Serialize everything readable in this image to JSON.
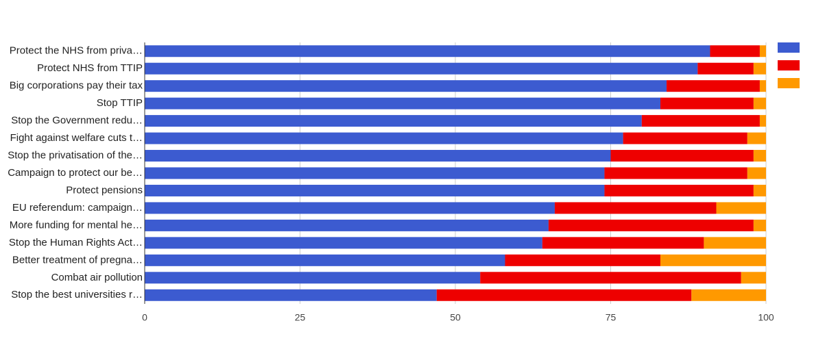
{
  "chart_data": {
    "type": "stacked-bar-horizontal",
    "categories": [
      "Protect the NHS from priva…",
      "Protect NHS from TTIP",
      "Big corporations pay their tax",
      "Stop TTIP",
      "Stop the Government redu…",
      "Fight against welfare cuts t…",
      "Stop the privatisation of the…",
      "Campaign to protect our be…",
      "Protect pensions",
      "EU referendum: campaign…",
      "More funding for mental he…",
      "Stop the Human Rights Act…",
      "Better treatment of pregna…",
      "Combat air pollution",
      "Stop the best universities r…"
    ],
    "series": [
      {
        "color": "#3c5bd0",
        "values": [
          91,
          89,
          84,
          83,
          80,
          77,
          75,
          74,
          74,
          66,
          65,
          64,
          58,
          54,
          47
        ]
      },
      {
        "color": "#ee0000",
        "values": [
          8,
          9,
          15,
          15,
          19,
          20,
          23,
          23,
          24,
          26,
          33,
          26,
          25,
          42,
          41
        ]
      },
      {
        "color": "#ff9900",
        "values": [
          1,
          2,
          1,
          2,
          1,
          3,
          2,
          3,
          2,
          8,
          2,
          10,
          17,
          4,
          12
        ]
      }
    ],
    "xlim": [
      0,
      100
    ],
    "xticks": [
      0,
      25,
      50,
      75,
      100
    ],
    "grid": true,
    "legend": "right"
  }
}
